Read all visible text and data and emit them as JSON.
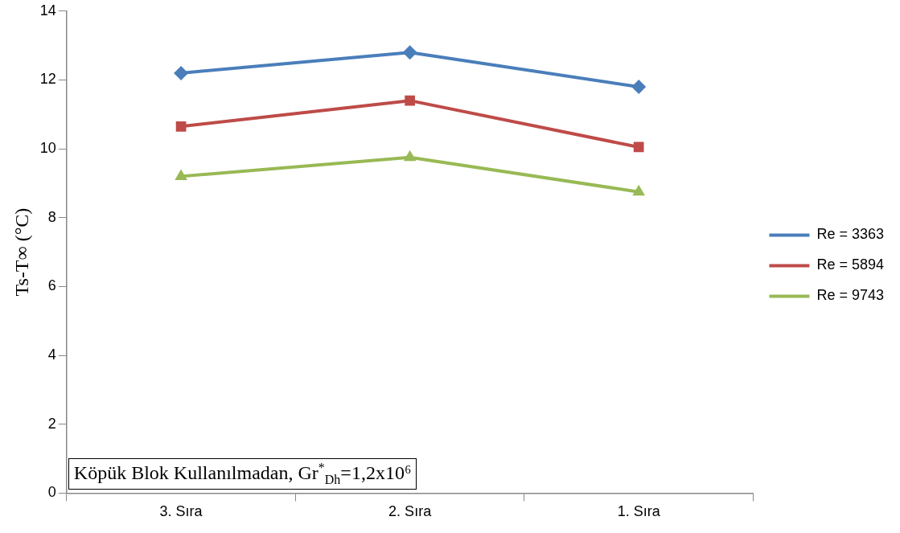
{
  "chart_data": {
    "type": "line",
    "ylabel": "Ts-T∞ (°C)",
    "categories": [
      "3. Sıra",
      "2. Sıra",
      "1. Sıra"
    ],
    "series": [
      {
        "name": "Re = 3363",
        "color": "#4a7ebb",
        "marker": "diamond",
        "values": [
          12.2,
          12.8,
          11.8
        ]
      },
      {
        "name": "Re = 5894",
        "color": "#be4b48",
        "marker": "square",
        "values": [
          10.65,
          11.4,
          10.05
        ]
      },
      {
        "name": "Re = 9743",
        "color": "#98b954",
        "marker": "triangle",
        "values": [
          9.2,
          9.75,
          8.75
        ]
      }
    ],
    "ylim": [
      0,
      14
    ],
    "yticks": [
      0,
      2,
      4,
      6,
      8,
      10,
      12,
      14
    ],
    "grid": false,
    "legend": "right",
    "annotations": [
      "Köpük Blok Kullanılmadan, Gr$^{*}$$_{Dh}$=1,2x10⁶"
    ]
  }
}
